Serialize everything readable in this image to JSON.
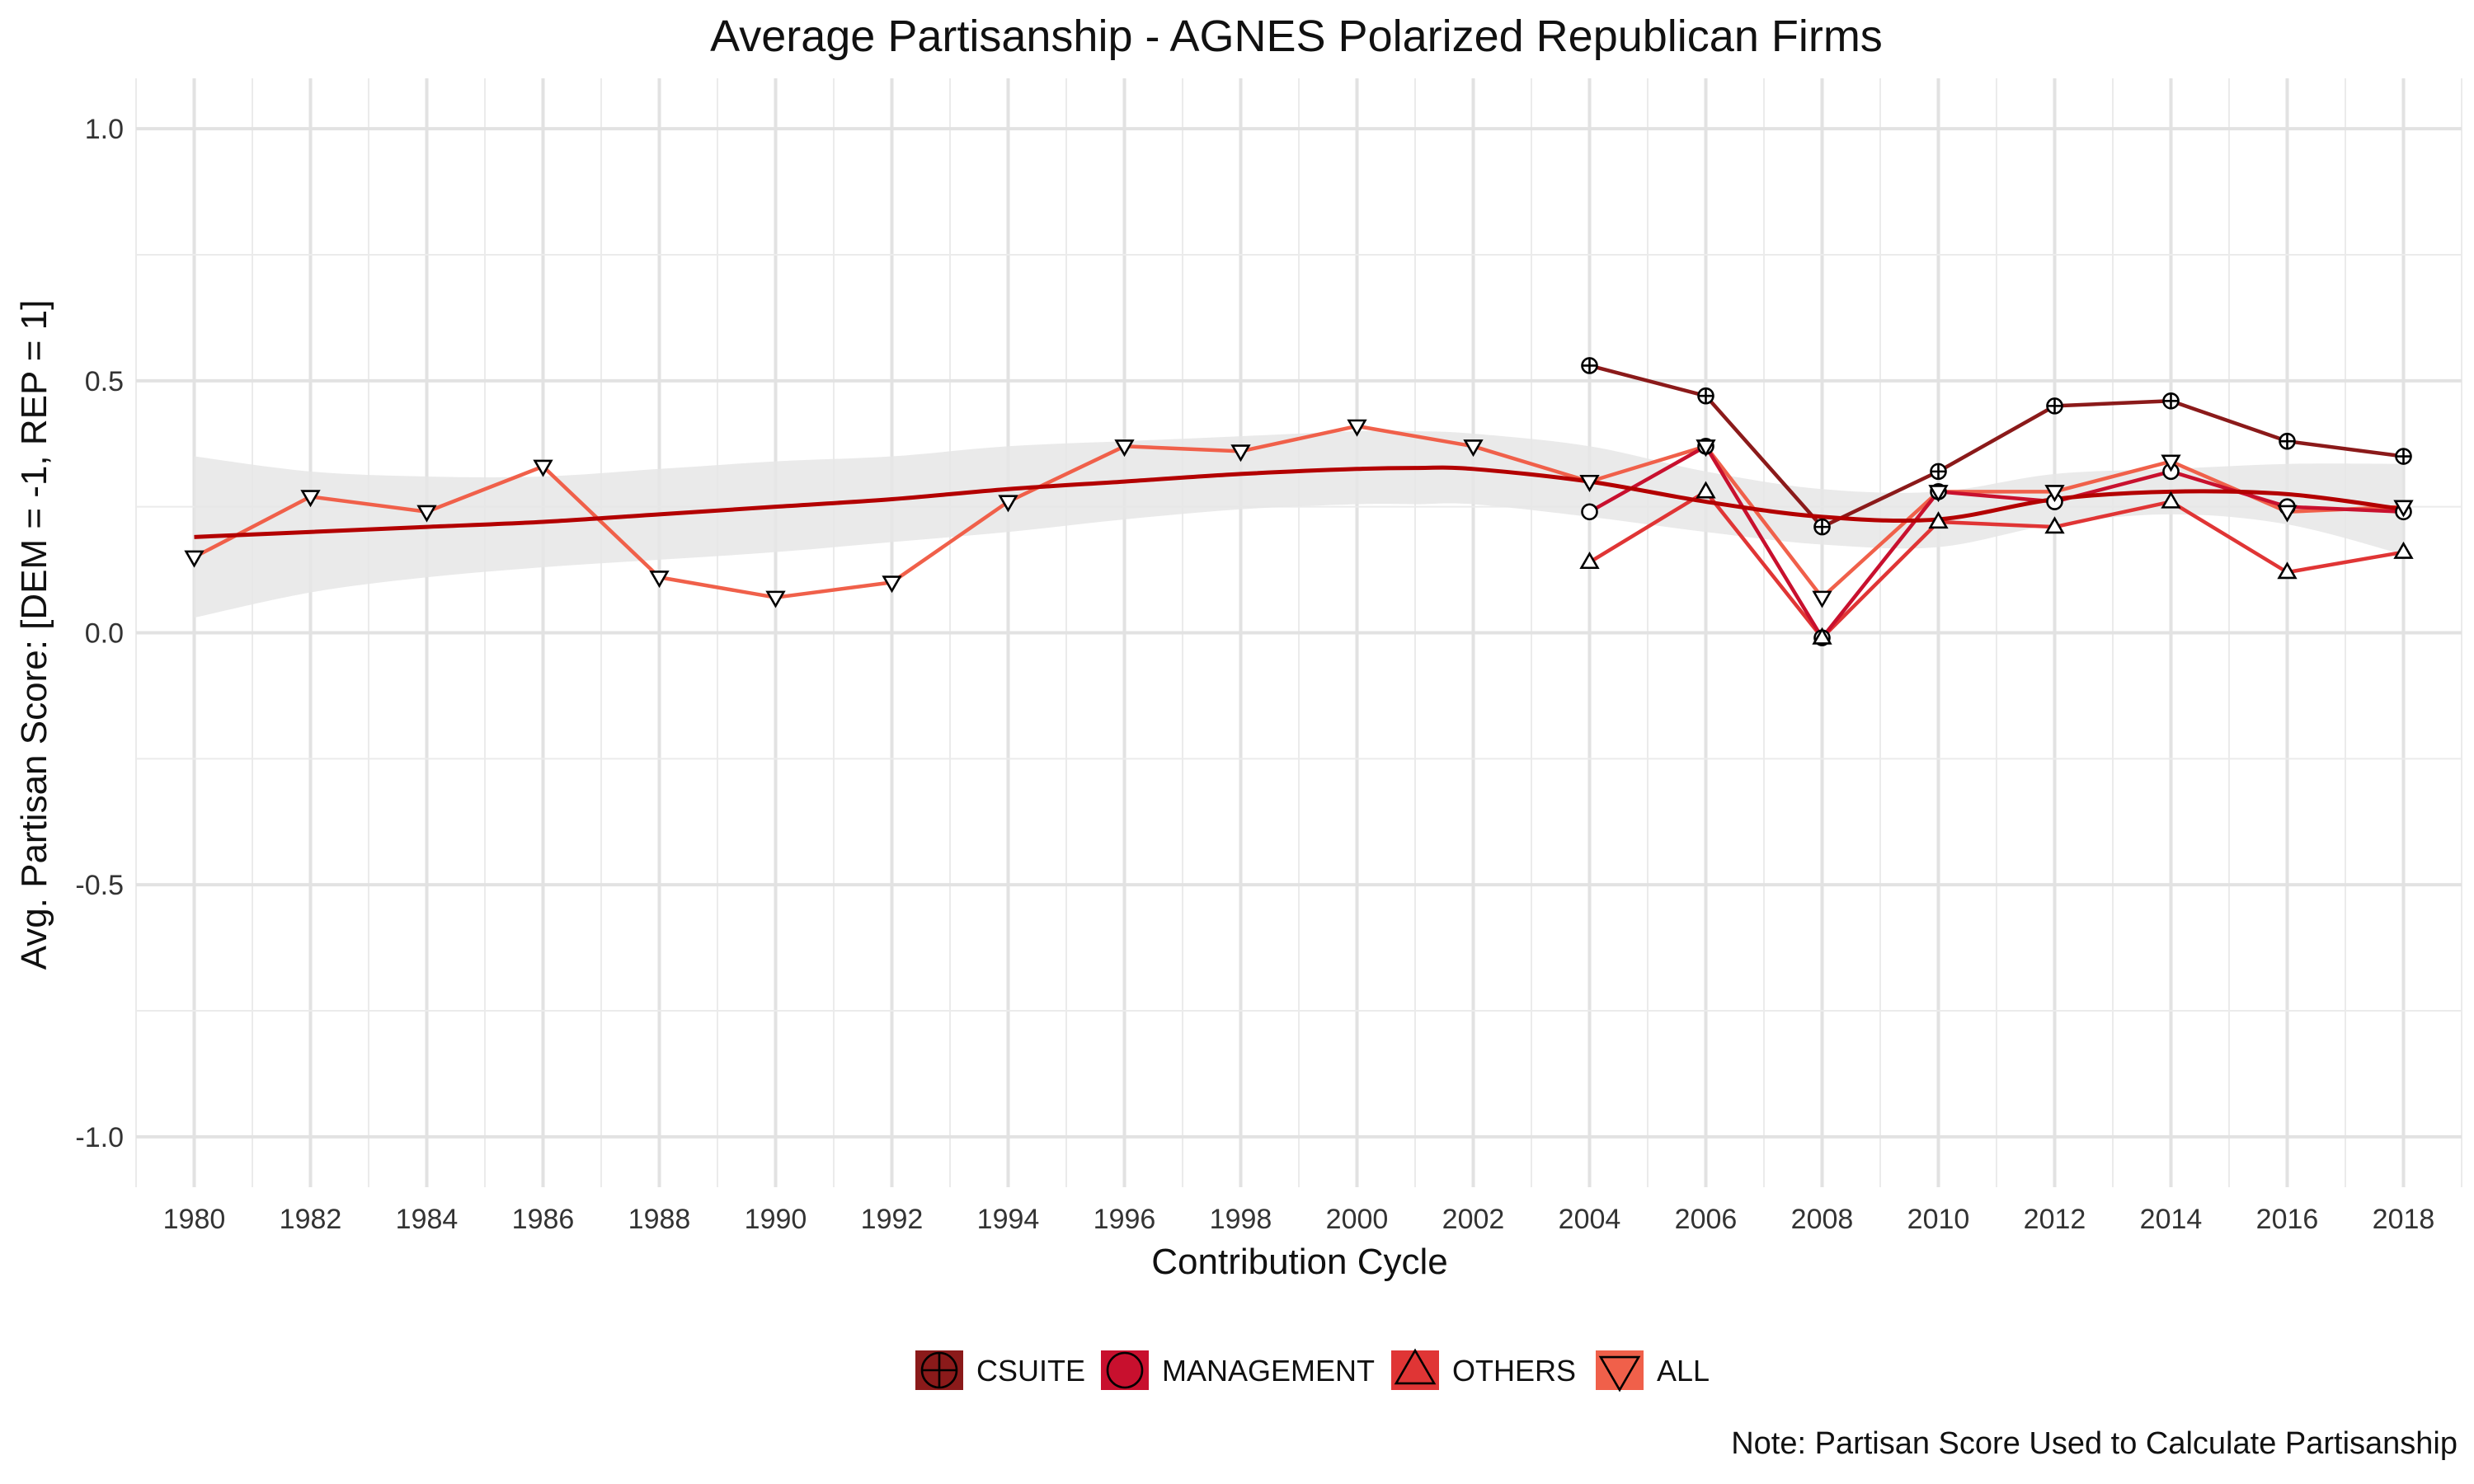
{
  "chart_data": {
    "type": "line",
    "title": "Average Partisanship - AGNES Polarized Republican Firms",
    "xlabel": "Contribution Cycle",
    "ylabel": "Avg. Partisan Score: [DEM = -1, REP = 1]",
    "caption": "Note: Partisan Score Used to Calculate Partisanship",
    "xlim": [
      1979,
      2019
    ],
    "ylim": [
      -1.1,
      1.1
    ],
    "x_ticks": [
      1980,
      1982,
      1984,
      1986,
      1988,
      1990,
      1992,
      1994,
      1996,
      1998,
      2000,
      2002,
      2004,
      2006,
      2008,
      2010,
      2012,
      2014,
      2016,
      2018
    ],
    "x_tick_labels": [
      "1980",
      "1982",
      "1984",
      "1986",
      "1988",
      "1990",
      "1992",
      "1994",
      "1996",
      "1998",
      "2000",
      "2002",
      "2004",
      "2006",
      "2008",
      "2010",
      "2012",
      "2014",
      "2016",
      "2018"
    ],
    "y_ticks": [
      1.0,
      0.5,
      0.0,
      -0.5,
      -1.0
    ],
    "y_tick_labels": [
      "1.0",
      "0.5",
      "0.0",
      "-0.5",
      "-1.0"
    ],
    "grid": true,
    "legend_position": "bottom",
    "series": [
      {
        "name": "CSUITE",
        "color": "#8B1A1A",
        "marker": "circle-plus",
        "x": [
          2004,
          2006,
          2008,
          2010,
          2012,
          2014,
          2016,
          2018
        ],
        "y": [
          0.53,
          0.47,
          0.21,
          0.32,
          0.45,
          0.46,
          0.38,
          0.35
        ]
      },
      {
        "name": "MANAGEMENT",
        "color": "#C8102E",
        "marker": "circle",
        "x": [
          2004,
          2006,
          2008,
          2010,
          2012,
          2014,
          2016,
          2018
        ],
        "y": [
          0.24,
          0.37,
          -0.01,
          0.28,
          0.26,
          0.32,
          0.25,
          0.24
        ]
      },
      {
        "name": "OTHERS",
        "color": "#E03535",
        "marker": "triangle-up",
        "x": [
          2004,
          2006,
          2008,
          2010,
          2012,
          2014,
          2016,
          2018
        ],
        "y": [
          0.14,
          0.28,
          -0.01,
          0.22,
          0.21,
          0.26,
          0.12,
          0.16
        ]
      },
      {
        "name": "ALL",
        "color": "#F0604A",
        "marker": "triangle-down",
        "x": [
          1980,
          1982,
          1984,
          1986,
          1988,
          1990,
          1992,
          1994,
          1996,
          1998,
          2000,
          2002,
          2004,
          2006,
          2008,
          2010,
          2012,
          2014,
          2016,
          2018
        ],
        "y": [
          0.15,
          0.27,
          0.24,
          0.33,
          0.11,
          0.07,
          0.1,
          0.26,
          0.37,
          0.36,
          0.41,
          0.37,
          0.3,
          0.37,
          0.07,
          0.28,
          0.28,
          0.34,
          0.24,
          0.25
        ]
      }
    ],
    "smooth": {
      "color": "#B30000",
      "band_color": "#E6E6E6",
      "x": [
        1980,
        1982,
        1984,
        1986,
        1988,
        1990,
        1992,
        1994,
        1996,
        1998,
        2000,
        2001,
        2002,
        2004,
        2006,
        2008,
        2010,
        2012,
        2014,
        2016,
        2018
      ],
      "y": [
        0.19,
        0.2,
        0.21,
        0.22,
        0.235,
        0.25,
        0.265,
        0.285,
        0.3,
        0.315,
        0.325,
        0.327,
        0.325,
        0.3,
        0.26,
        0.23,
        0.225,
        0.265,
        0.28,
        0.275,
        0.245
      ],
      "lower": [
        0.03,
        0.08,
        0.11,
        0.13,
        0.145,
        0.16,
        0.18,
        0.2,
        0.225,
        0.245,
        0.255,
        0.255,
        0.255,
        0.23,
        0.2,
        0.175,
        0.17,
        0.215,
        0.235,
        0.215,
        0.155
      ],
      "upper": [
        0.35,
        0.32,
        0.31,
        0.31,
        0.325,
        0.34,
        0.35,
        0.37,
        0.38,
        0.39,
        0.4,
        0.4,
        0.395,
        0.37,
        0.32,
        0.285,
        0.28,
        0.315,
        0.325,
        0.335,
        0.335
      ]
    }
  }
}
